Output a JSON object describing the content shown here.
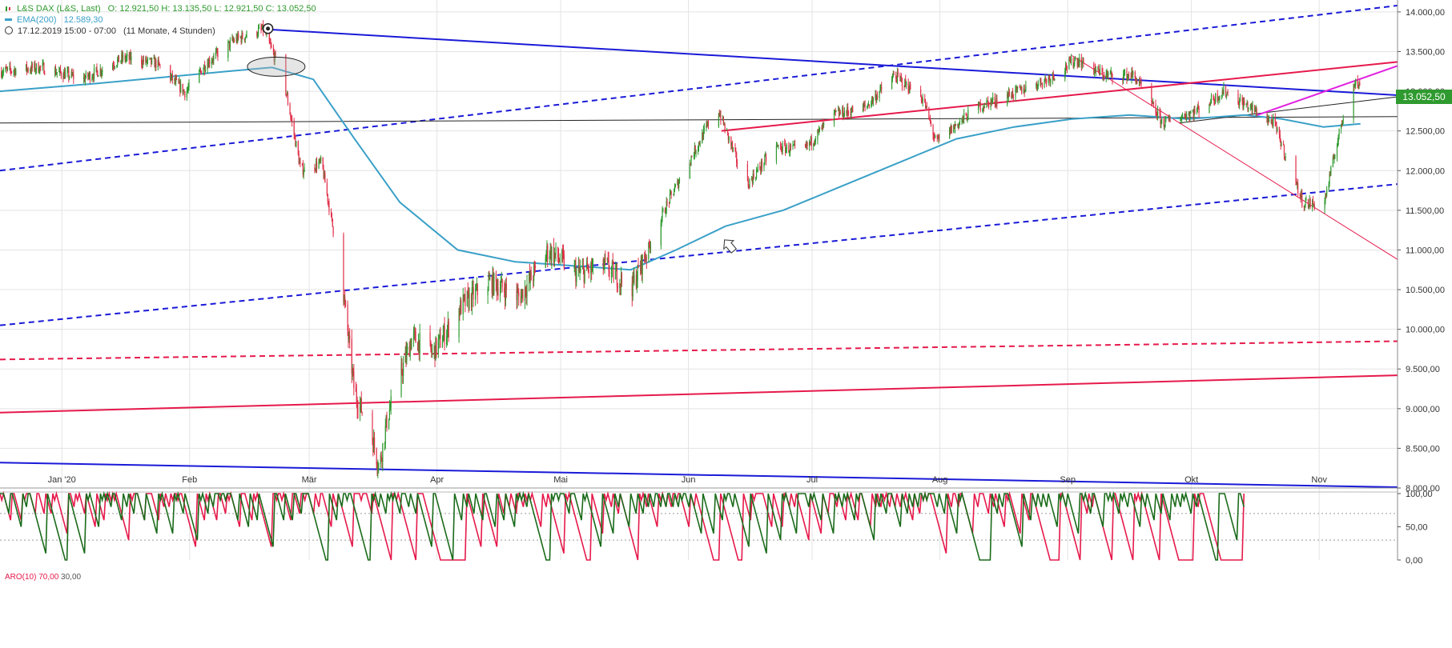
{
  "header": {
    "symbol": "L&S DAX (L&S, Last)",
    "ohlc": "O: 12.921,50  H: 13.135,50  L: 12.921,50  C: 13.052,50",
    "ema_label": "EMA(200)",
    "ema_value": "12.589,30",
    "period": "17.12.2019 15:00 - 07:00",
    "interval": "(11 Monate, 4 Stunden)"
  },
  "indicator": {
    "label": "ARO(10)",
    "upper": "70,00",
    "lower": "30,00"
  },
  "current_price_label": "13.052,50",
  "colors": {
    "bull": "#2e9a2e",
    "bear": "#e0304a",
    "ema": "#3aa0c8",
    "blue_line": "#1a1ad8",
    "red_line": "#e6194b",
    "magenta": "#e020e0",
    "aroon_up": "#1a6b1a",
    "aroon_down": "#e6194b",
    "grid": "#e3e3e3"
  },
  "chart_data": [
    {
      "type": "candlestick",
      "title": "",
      "x_ticks": [
        "Jan '20",
        "Feb",
        "Mär",
        "Apr",
        "Mai",
        "Jun",
        "Jul",
        "Aug",
        "Sep",
        "Okt",
        "Nov"
      ],
      "y_ticks": [
        "8.000,00",
        "8.500,00",
        "9.000,00",
        "9.500,00",
        "10.000,00",
        "10.500,00",
        "11.000,00",
        "11.500,00",
        "12.000,00",
        "12.500,00",
        "13.000,00",
        "13.500,00",
        "14.000,00"
      ],
      "ylim": [
        8000,
        14150
      ],
      "x_range": [
        "2019-12-17",
        "2020-11-20"
      ],
      "close_path": [
        [
          "2019-12-17",
          13250
        ],
        [
          "2019-12-27",
          13300
        ],
        [
          "2020-01-06",
          13150
        ],
        [
          "2020-01-16",
          13420
        ],
        [
          "2020-01-24",
          13350
        ],
        [
          "2020-01-31",
          12980
        ],
        [
          "2020-02-05",
          13350
        ],
        [
          "2020-02-12",
          13650
        ],
        [
          "2020-02-19",
          13780
        ],
        [
          "2020-02-24",
          13100
        ],
        [
          "2020-02-28",
          12000
        ],
        [
          "2020-03-04",
          12100
        ],
        [
          "2020-03-09",
          10600
        ],
        [
          "2020-03-12",
          9200
        ],
        [
          "2020-03-16",
          8700
        ],
        [
          "2020-03-18",
          8250
        ],
        [
          "2020-03-20",
          8900
        ],
        [
          "2020-03-26",
          9900
        ],
        [
          "2020-03-31",
          9700
        ],
        [
          "2020-04-07",
          10300
        ],
        [
          "2020-04-14",
          10600
        ],
        [
          "2020-04-21",
          10400
        ],
        [
          "2020-04-28",
          11000
        ],
        [
          "2020-05-05",
          10700
        ],
        [
          "2020-05-12",
          10800
        ],
        [
          "2020-05-18",
          10500
        ],
        [
          "2020-05-27",
          11600
        ],
        [
          "2020-06-08",
          12800
        ],
        [
          "2020-06-15",
          11800
        ],
        [
          "2020-06-22",
          12300
        ],
        [
          "2020-06-29",
          12250
        ],
        [
          "2020-07-06",
          12700
        ],
        [
          "2020-07-14",
          12800
        ],
        [
          "2020-07-21",
          13200
        ],
        [
          "2020-07-28",
          12900
        ],
        [
          "2020-07-31",
          12350
        ],
        [
          "2020-08-10",
          12800
        ],
        [
          "2020-08-20",
          13000
        ],
        [
          "2020-08-27",
          13150
        ],
        [
          "2020-09-03",
          13400
        ],
        [
          "2020-09-10",
          13200
        ],
        [
          "2020-09-17",
          13200
        ],
        [
          "2020-09-24",
          12600
        ],
        [
          "2020-10-02",
          12750
        ],
        [
          "2020-10-09",
          13000
        ],
        [
          "2020-10-15",
          12800
        ],
        [
          "2020-10-21",
          12600
        ],
        [
          "2020-10-28",
          11600
        ],
        [
          "2020-11-02",
          11550
        ],
        [
          "2020-11-06",
          12500
        ],
        [
          "2020-11-09",
          13150
        ],
        [
          "2020-11-11",
          13050
        ]
      ],
      "ema_200": [
        [
          "2019-12-17",
          13000
        ],
        [
          "2020-01-10",
          13100
        ],
        [
          "2020-02-10",
          13250
        ],
        [
          "2020-02-21",
          13300
        ],
        [
          "2020-03-02",
          13150
        ],
        [
          "2020-03-12",
          12400
        ],
        [
          "2020-03-23",
          11600
        ],
        [
          "2020-04-06",
          11000
        ],
        [
          "2020-04-20",
          10850
        ],
        [
          "2020-05-04",
          10800
        ],
        [
          "2020-05-18",
          10750
        ],
        [
          "2020-05-29",
          11000
        ],
        [
          "2020-06-10",
          11300
        ],
        [
          "2020-06-24",
          11500
        ],
        [
          "2020-07-08",
          11800
        ],
        [
          "2020-07-22",
          12100
        ],
        [
          "2020-08-05",
          12400
        ],
        [
          "2020-08-19",
          12550
        ],
        [
          "2020-09-02",
          12650
        ],
        [
          "2020-09-16",
          12700
        ],
        [
          "2020-09-30",
          12650
        ],
        [
          "2020-10-14",
          12700
        ],
        [
          "2020-10-23",
          12650
        ],
        [
          "2020-11-02",
          12550
        ],
        [
          "2020-11-11",
          12589
        ]
      ],
      "lines": [
        {
          "color": "blue",
          "dash": false,
          "from": [
            "2020-02-20",
            13780
          ],
          "to": [
            "2020-11-20",
            12950
          ]
        },
        {
          "color": "blue",
          "dash": true,
          "from": [
            "2019-12-17",
            12000
          ],
          "to": [
            "2020-11-20",
            14080
          ]
        },
        {
          "color": "blue",
          "dash": true,
          "from": [
            "2019-12-17",
            10050
          ],
          "to": [
            "2020-11-20",
            11830
          ]
        },
        {
          "color": "blue",
          "dash": false,
          "from": [
            "2019-12-17",
            8320
          ],
          "to": [
            "2020-11-20",
            8010
          ]
        },
        {
          "color": "black",
          "dash": false,
          "from": [
            "2019-12-17",
            12600
          ],
          "to": [
            "2020-11-20",
            12680
          ]
        },
        {
          "color": "black",
          "dash": false,
          "from": [
            "2020-09-28",
            12600
          ],
          "to": [
            "2020-11-20",
            12930
          ]
        },
        {
          "color": "red",
          "dash": false,
          "from": [
            "2020-06-09",
            12500
          ],
          "to": [
            "2020-11-20",
            13370
          ]
        },
        {
          "color": "red",
          "dash": true,
          "from": [
            "2019-12-17",
            9620
          ],
          "to": [
            "2020-11-20",
            9850
          ]
        },
        {
          "color": "red",
          "dash": false,
          "from": [
            "2019-12-17",
            8950
          ],
          "to": [
            "2020-11-20",
            9420
          ]
        },
        {
          "color": "red",
          "dash": false,
          "thin": true,
          "from": [
            "2020-09-02",
            13450
          ],
          "to": [
            "2020-11-20",
            10880
          ]
        },
        {
          "color": "magenta",
          "dash": false,
          "from": [
            "2020-10-17",
            12700
          ],
          "to": [
            "2020-11-20",
            13320
          ]
        }
      ]
    },
    {
      "type": "line",
      "title": "",
      "indicator": "Aroon",
      "ylim": [
        0,
        100
      ],
      "y_ticks": [
        "0,00",
        "50,00",
        "100,00"
      ],
      "levels": [
        70,
        30
      ],
      "series": [
        {
          "name": "Aroon Up"
        },
        {
          "name": "Aroon Down"
        }
      ],
      "period": 10
    }
  ]
}
